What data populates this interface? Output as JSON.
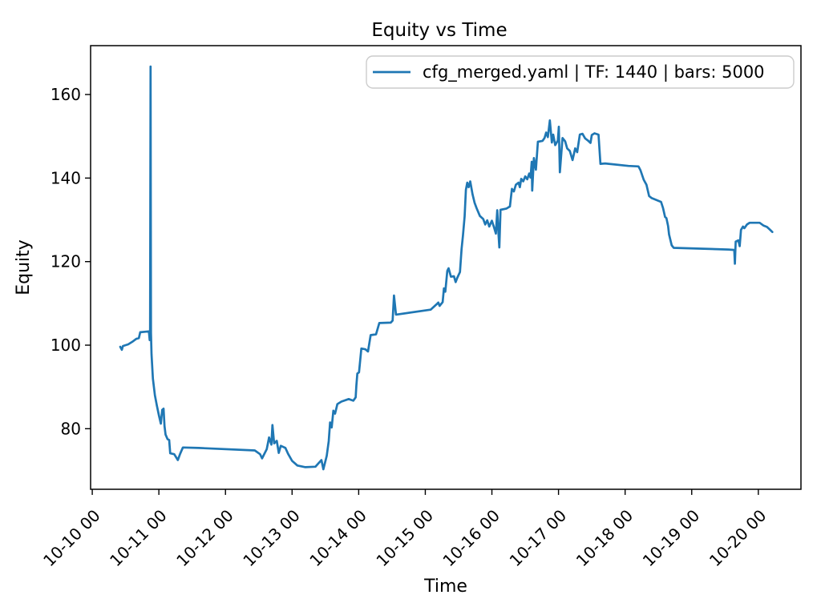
{
  "title": "Equity vs Time",
  "colors": {
    "line": "#1f77b4",
    "spine": "#000000",
    "text": "#000000",
    "legend_border": "#cccccc",
    "background": "#ffffff"
  },
  "chart_data": {
    "type": "line",
    "title": "Equity vs Time",
    "xlabel": "Time",
    "ylabel": "Equity",
    "legend": [
      "cfg_merged.yaml | TF: 1440 | bars: 5000"
    ],
    "legend_position": "upper right",
    "grid": false,
    "x_unit": "days since 10-10 00:00",
    "x_tick_days": [
      0,
      1,
      2,
      3,
      4,
      5,
      6,
      7,
      8,
      9,
      10
    ],
    "x_tick_labels": [
      "10-10 00",
      "10-11 00",
      "10-12 00",
      "10-13 00",
      "10-14 00",
      "10-15 00",
      "10-16 00",
      "10-17 00",
      "10-18 00",
      "10-19 00",
      "10-20 00"
    ],
    "x_tick_rotation_deg": 45,
    "y_ticks": [
      80,
      100,
      120,
      140,
      160
    ],
    "ylim": [
      65.5,
      171.7
    ],
    "xlim_days": [
      -0.025,
      10.64
    ],
    "series": [
      {
        "name": "cfg_merged.yaml | TF: 1440 | bars: 5000",
        "color": "#1f77b4",
        "points": [
          [
            0.42,
            99.6
          ],
          [
            0.445,
            98.9
          ],
          [
            0.46,
            99.8
          ],
          [
            0.54,
            100.2
          ],
          [
            0.6,
            100.8
          ],
          [
            0.66,
            101.5
          ],
          [
            0.7,
            101.7
          ],
          [
            0.72,
            103.1
          ],
          [
            0.85,
            103.3
          ],
          [
            0.862,
            101.2
          ],
          [
            0.868,
            102.9
          ],
          [
            0.875,
            166.7
          ],
          [
            0.882,
            102.9
          ],
          [
            0.89,
            97.8
          ],
          [
            0.91,
            92.0
          ],
          [
            0.94,
            88.0
          ],
          [
            0.97,
            85.5
          ],
          [
            1.0,
            83.2
          ],
          [
            1.03,
            81.2
          ],
          [
            1.05,
            84.5
          ],
          [
            1.07,
            84.8
          ],
          [
            1.085,
            80.6
          ],
          [
            1.1,
            78.6
          ],
          [
            1.13,
            77.5
          ],
          [
            1.155,
            77.3
          ],
          [
            1.17,
            74.1
          ],
          [
            1.23,
            73.9
          ],
          [
            1.285,
            72.5
          ],
          [
            1.32,
            74.0
          ],
          [
            1.36,
            75.5
          ],
          [
            1.6,
            75.4
          ],
          [
            2.44,
            74.8
          ],
          [
            2.52,
            73.9
          ],
          [
            2.55,
            72.9
          ],
          [
            2.62,
            75.1
          ],
          [
            2.655,
            77.9
          ],
          [
            2.69,
            76.2
          ],
          [
            2.705,
            80.9
          ],
          [
            2.73,
            76.5
          ],
          [
            2.77,
            77.1
          ],
          [
            2.8,
            74.2
          ],
          [
            2.83,
            75.9
          ],
          [
            2.9,
            75.4
          ],
          [
            2.94,
            74.0
          ],
          [
            3.0,
            72.3
          ],
          [
            3.08,
            71.2
          ],
          [
            3.2,
            70.8
          ],
          [
            3.35,
            70.9
          ],
          [
            3.44,
            72.5
          ],
          [
            3.47,
            70.3
          ],
          [
            3.52,
            73.5
          ],
          [
            3.55,
            77.0
          ],
          [
            3.57,
            81.5
          ],
          [
            3.595,
            80.3
          ],
          [
            3.62,
            84.3
          ],
          [
            3.645,
            83.6
          ],
          [
            3.68,
            85.9
          ],
          [
            3.74,
            86.5
          ],
          [
            3.85,
            87.1
          ],
          [
            3.92,
            86.7
          ],
          [
            3.955,
            87.5
          ],
          [
            3.965,
            90.4
          ],
          [
            3.98,
            93.2
          ],
          [
            4.005,
            93.5
          ],
          [
            4.04,
            99.2
          ],
          [
            4.1,
            99.0
          ],
          [
            4.14,
            98.5
          ],
          [
            4.18,
            102.4
          ],
          [
            4.26,
            102.6
          ],
          [
            4.31,
            105.3
          ],
          [
            4.48,
            105.4
          ],
          [
            4.51,
            105.9
          ],
          [
            4.53,
            111.9
          ],
          [
            4.56,
            107.3
          ],
          [
            5.08,
            108.5
          ],
          [
            5.17,
            109.8
          ],
          [
            5.195,
            110.2
          ],
          [
            5.215,
            109.4
          ],
          [
            5.26,
            110.3
          ],
          [
            5.28,
            113.6
          ],
          [
            5.3,
            112.8
          ],
          [
            5.33,
            117.8
          ],
          [
            5.35,
            118.4
          ],
          [
            5.385,
            116.4
          ],
          [
            5.43,
            116.5
          ],
          [
            5.455,
            115.1
          ],
          [
            5.48,
            116.1
          ],
          [
            5.52,
            117.5
          ],
          [
            5.545,
            123.0
          ],
          [
            5.565,
            126.2
          ],
          [
            5.59,
            130.8
          ],
          [
            5.61,
            137.2
          ],
          [
            5.63,
            138.9
          ],
          [
            5.65,
            137.8
          ],
          [
            5.675,
            139.2
          ],
          [
            5.71,
            136.1
          ],
          [
            5.74,
            134.1
          ],
          [
            5.77,
            132.8
          ],
          [
            5.82,
            130.9
          ],
          [
            5.87,
            130.2
          ],
          [
            5.9,
            128.9
          ],
          [
            5.93,
            129.9
          ],
          [
            5.96,
            128.4
          ],
          [
            6.0,
            129.8
          ],
          [
            6.03,
            128.3
          ],
          [
            6.06,
            126.7
          ],
          [
            6.08,
            132.3
          ],
          [
            6.1,
            126.5
          ],
          [
            6.112,
            123.4
          ],
          [
            6.13,
            132.4
          ],
          [
            6.22,
            132.7
          ],
          [
            6.27,
            133.2
          ],
          [
            6.3,
            137.4
          ],
          [
            6.33,
            136.8
          ],
          [
            6.36,
            138.4
          ],
          [
            6.4,
            138.9
          ],
          [
            6.42,
            137.8
          ],
          [
            6.44,
            139.8
          ],
          [
            6.47,
            139.2
          ],
          [
            6.5,
            140.4
          ],
          [
            6.53,
            139.7
          ],
          [
            6.56,
            141.1
          ],
          [
            6.58,
            140.1
          ],
          [
            6.598,
            143.9
          ],
          [
            6.605,
            137.0
          ],
          [
            6.63,
            144.8
          ],
          [
            6.66,
            142.0
          ],
          [
            6.69,
            148.7
          ],
          [
            6.76,
            148.9
          ],
          [
            6.79,
            149.6
          ],
          [
            6.815,
            150.9
          ],
          [
            6.84,
            149.8
          ],
          [
            6.87,
            153.8
          ],
          [
            6.9,
            148.5
          ],
          [
            6.92,
            150.4
          ],
          [
            6.95,
            147.9
          ],
          [
            6.99,
            149.0
          ],
          [
            7.005,
            152.3
          ],
          [
            7.02,
            141.4
          ],
          [
            7.06,
            149.6
          ],
          [
            7.1,
            148.8
          ],
          [
            7.13,
            147.1
          ],
          [
            7.17,
            146.5
          ],
          [
            7.21,
            144.3
          ],
          [
            7.25,
            147.1
          ],
          [
            7.28,
            146.2
          ],
          [
            7.32,
            150.4
          ],
          [
            7.36,
            150.6
          ],
          [
            7.4,
            149.5
          ],
          [
            7.44,
            149.0
          ],
          [
            7.48,
            148.4
          ],
          [
            7.5,
            150.3
          ],
          [
            7.54,
            150.7
          ],
          [
            7.6,
            150.4
          ],
          [
            7.63,
            143.4
          ],
          [
            7.7,
            143.5
          ],
          [
            8.05,
            142.9
          ],
          [
            8.2,
            142.8
          ],
          [
            8.23,
            141.9
          ],
          [
            8.28,
            139.6
          ],
          [
            8.32,
            138.4
          ],
          [
            8.36,
            135.7
          ],
          [
            8.4,
            135.2
          ],
          [
            8.54,
            134.3
          ],
          [
            8.57,
            132.8
          ],
          [
            8.6,
            130.7
          ],
          [
            8.62,
            130.4
          ],
          [
            8.645,
            128.5
          ],
          [
            8.66,
            126.5
          ],
          [
            8.7,
            123.9
          ],
          [
            8.73,
            123.3
          ],
          [
            9.55,
            122.9
          ],
          [
            9.638,
            122.8
          ],
          [
            9.648,
            119.5
          ],
          [
            9.66,
            124.8
          ],
          [
            9.7,
            125.1
          ],
          [
            9.72,
            123.7
          ],
          [
            9.74,
            127.6
          ],
          [
            9.77,
            128.4
          ],
          [
            9.79,
            128.0
          ],
          [
            9.83,
            128.9
          ],
          [
            9.87,
            129.3
          ],
          [
            10.02,
            129.3
          ],
          [
            10.08,
            128.6
          ],
          [
            10.13,
            128.3
          ],
          [
            10.17,
            127.7
          ],
          [
            10.21,
            127.1
          ]
        ]
      }
    ]
  }
}
